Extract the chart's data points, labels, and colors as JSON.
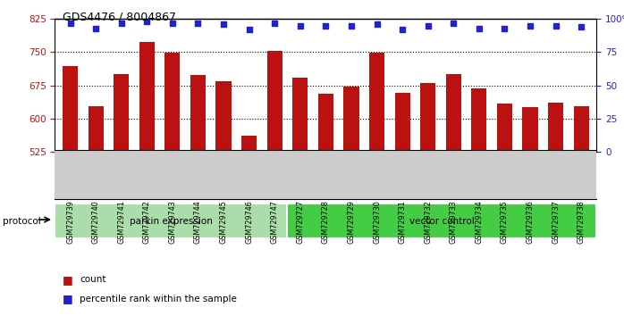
{
  "title": "GDS4476 / 8004867",
  "samples": [
    "GSM729739",
    "GSM729740",
    "GSM729741",
    "GSM729742",
    "GSM729743",
    "GSM729744",
    "GSM729745",
    "GSM729746",
    "GSM729747",
    "GSM729727",
    "GSM729728",
    "GSM729729",
    "GSM729730",
    "GSM729731",
    "GSM729732",
    "GSM729733",
    "GSM729734",
    "GSM729735",
    "GSM729736",
    "GSM729737",
    "GSM729738"
  ],
  "counts": [
    718,
    627,
    700,
    773,
    748,
    698,
    685,
    561,
    752,
    693,
    657,
    672,
    748,
    658,
    681,
    700,
    669,
    634,
    626,
    635,
    628
  ],
  "percentile_ranks": [
    97,
    93,
    97,
    98,
    97,
    97,
    96,
    92,
    97,
    95,
    95,
    95,
    96,
    92,
    95,
    97,
    93,
    93,
    95,
    95,
    94
  ],
  "groups": [
    {
      "label": "parkin expression",
      "start": 0,
      "end": 9,
      "color": "#aaddaa"
    },
    {
      "label": "vector control",
      "start": 9,
      "end": 21,
      "color": "#44cc44"
    }
  ],
  "protocol_label": "protocol",
  "ylim_left": [
    525,
    825
  ],
  "yticks_left": [
    525,
    600,
    675,
    750,
    825
  ],
  "yticks_right": [
    0,
    25,
    50,
    75,
    100
  ],
  "bar_color": "#bb1111",
  "dot_color": "#2222cc",
  "grid_lines": [
    600,
    675,
    750
  ],
  "bar_width": 0.6,
  "title_fontsize": 9
}
